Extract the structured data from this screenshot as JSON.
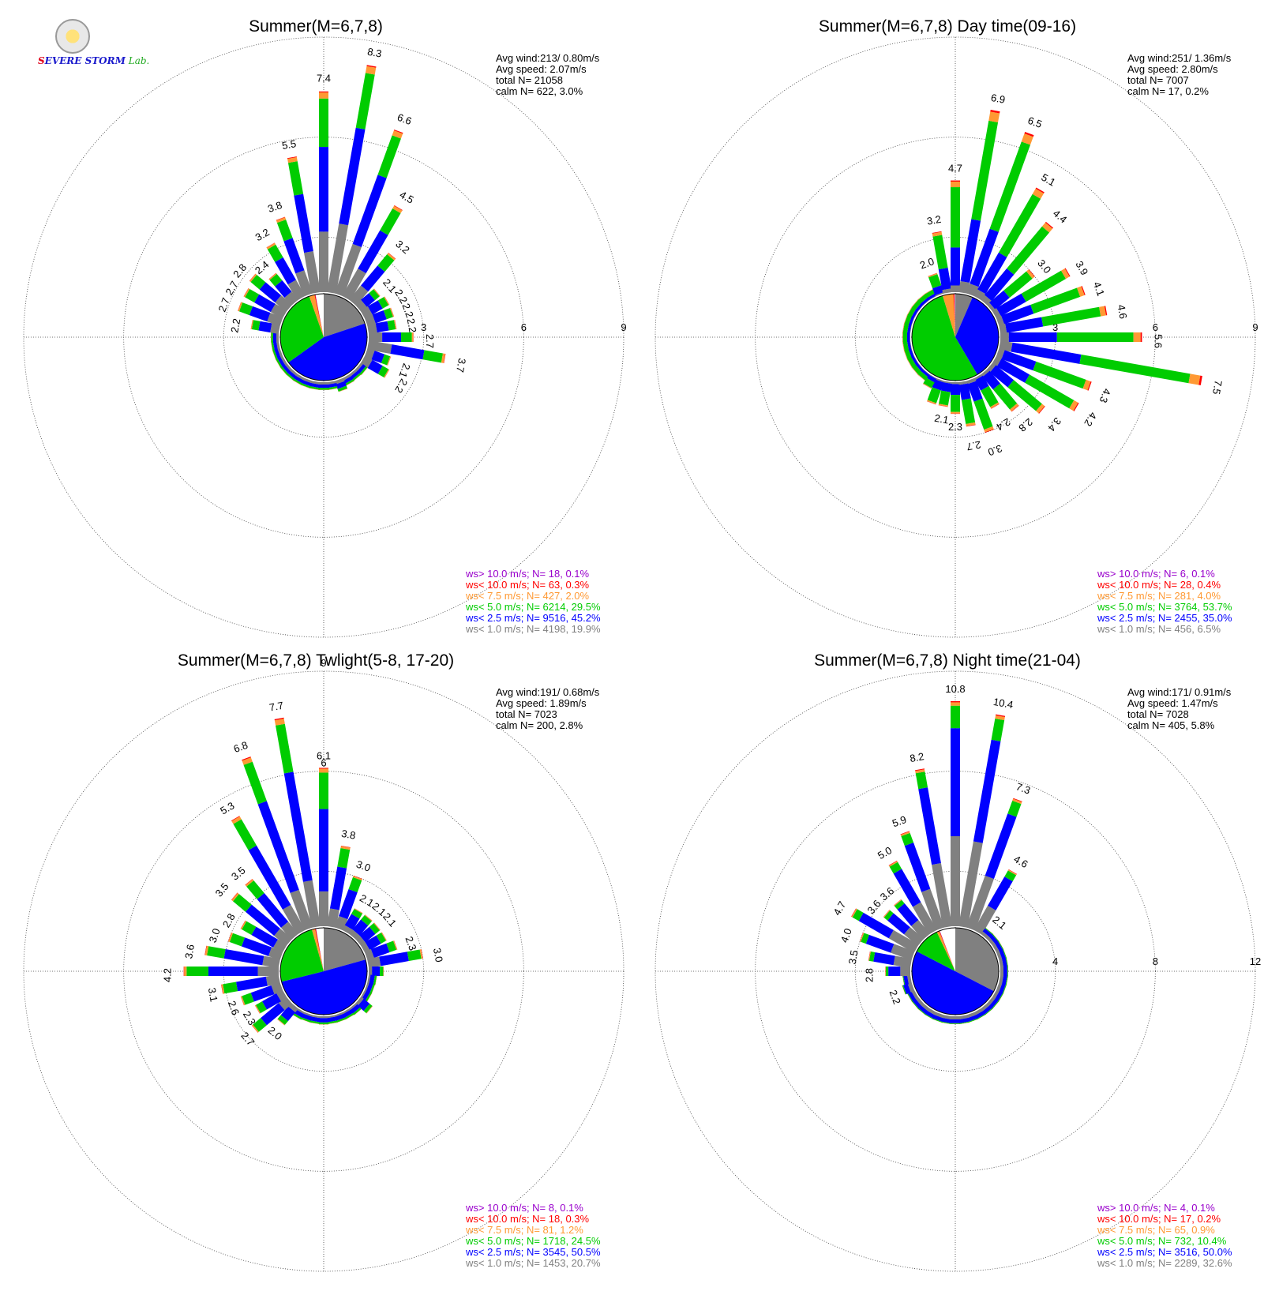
{
  "logo": {
    "part1": "S",
    "part2": "EVERE STORM",
    "part3": "Lab."
  },
  "colors": {
    "gray": "#808080",
    "blue": "#0000ff",
    "green": "#00cc00",
    "orange": "#ff9933",
    "red": "#ff0000",
    "purple": "#9900cc",
    "calm": "#ffffff"
  },
  "chart_data": [
    {
      "type": "wind-rose",
      "title": "Summer(M=6,7,8)",
      "rings": [
        3,
        6,
        9
      ],
      "stats": [
        "Avg wind:213/ 0.80m/s",
        "Avg speed: 2.07m/s",
        "total N=      21058",
        "calm N=    622,   3.0%"
      ],
      "legend": [
        {
          "label": "ws> 10.0 m/s; N=     18,  0.1%",
          "color": "#9900cc"
        },
        {
          "label": "ws< 10.0 m/s; N=     63,  0.3%",
          "color": "#ff0000"
        },
        {
          "label": "ws<  7.5 m/s; N=   427,  2.0%",
          "color": "#ff9933"
        },
        {
          "label": "ws<  5.0 m/s; N=  6214, 29.5%",
          "color": "#00cc00"
        },
        {
          "label": "ws<  2.5 m/s; N=  9516, 45.2%",
          "color": "#0000ff"
        },
        {
          "label": "ws<  1.0 m/s; N=  4198, 19.9%",
          "color": "#808080"
        }
      ],
      "pie": [
        19.9,
        45.2,
        29.5,
        2.0,
        0.3,
        0.1,
        3.0
      ],
      "directions": [
        0,
        10,
        20,
        30,
        40,
        50,
        60,
        70,
        80,
        90,
        100,
        110,
        120,
        130,
        140,
        150,
        160,
        170,
        180,
        190,
        200,
        210,
        220,
        230,
        240,
        250,
        260,
        270,
        280,
        290,
        300,
        310,
        320,
        330,
        340,
        350
      ],
      "totals": [
        1.4,
        1.3,
        1.2,
        1.1,
        1.0,
        1.0,
        1.0,
        1.0,
        1.0,
        1.4,
        2.2,
        2.7,
        2.7,
        2.8,
        2.4,
        3.2,
        3.8,
        5.5,
        7.4,
        8.3,
        6.6,
        4.5,
        3.2,
        2.1,
        2.2,
        2.2,
        2.2,
        2.7,
        3.7,
        2.1,
        2.2,
        1.6,
        1.5,
        1.6,
        1.7,
        1.5
      ],
      "labels": [
        "",
        "",
        "",
        "",
        "",
        "",
        "",
        "",
        "",
        "",
        "2.2",
        "2.7",
        "2.7",
        "2.8",
        "2.4",
        "3.2",
        "3.8",
        "5.5",
        "7.4",
        "8.3",
        "6.6",
        "4.5",
        "3.2",
        "2.1",
        "2.2",
        "2.2",
        "2.2",
        "2.7",
        "3.7",
        "2.1",
        "2.2",
        "",
        "",
        "",
        "",
        ""
      ],
      "fractions": [
        0.3,
        0.42,
        0.24,
        0.03,
        0.005
      ]
    },
    {
      "type": "wind-rose",
      "title": "Summer(M=6,7,8) Day time(09-16)",
      "rings": [
        3,
        6,
        9
      ],
      "stats": [
        "Avg wind:251/ 1.36m/s",
        "Avg speed: 2.80m/s",
        "total N=        7007",
        "calm N=      17,   0.2%"
      ],
      "legend": [
        {
          "label": "ws> 10.0 m/s; N=      6,  0.1%",
          "color": "#9900cc"
        },
        {
          "label": "ws< 10.0 m/s; N=     28,  0.4%",
          "color": "#ff0000"
        },
        {
          "label": "ws<  7.5 m/s; N=   281,  4.0%",
          "color": "#ff9933"
        },
        {
          "label": "ws<  5.0 m/s; N=  3764, 53.7%",
          "color": "#00cc00"
        },
        {
          "label": "ws<  2.5 m/s; N=  2455, 35.0%",
          "color": "#0000ff"
        },
        {
          "label": "ws<  1.0 m/s; N=    456,  6.5%",
          "color": "#808080"
        }
      ],
      "pie": [
        6.5,
        35.0,
        53.7,
        4.0,
        0.4,
        0.1,
        0.2
      ],
      "directions": [
        0,
        10,
        20,
        30,
        40,
        50,
        60,
        70,
        80,
        90,
        100,
        110,
        120,
        130,
        140,
        150,
        160,
        170,
        180,
        190,
        200,
        210,
        220,
        230,
        240,
        250,
        260,
        270,
        280,
        290,
        300,
        310,
        320,
        330,
        340,
        350
      ],
      "totals": [
        2.3,
        2.1,
        2.1,
        1.7,
        1.3,
        1.0,
        0.8,
        0.7,
        0.6,
        0.5,
        0.5,
        0.7,
        0.9,
        1.0,
        1.1,
        1.3,
        2.0,
        3.2,
        4.7,
        6.9,
        6.5,
        5.1,
        4.4,
        3.0,
        3.9,
        4.1,
        4.6,
        5.6,
        7.5,
        4.3,
        4.2,
        3.4,
        2.8,
        2.4,
        3.0,
        2.7
      ],
      "labels": [
        "2.3",
        "2.1",
        "",
        "",
        "",
        "",
        "",
        "",
        "",
        "",
        "",
        "",
        "",
        "",
        "",
        "",
        "2.0",
        "3.2",
        "4.7",
        "6.9",
        "6.5",
        "5.1",
        "4.4",
        "3.0",
        "3.9",
        "4.1",
        "4.6",
        "5.6",
        "7.5",
        "4.3",
        "4.2",
        "3.4",
        "2.8",
        "2.4",
        "3.0",
        "2.7"
      ],
      "fractions": [
        0.06,
        0.34,
        0.54,
        0.05,
        0.01
      ]
    },
    {
      "type": "wind-rose",
      "title": "Summer(M=6,7,8) Twlight(5-8, 17-20)",
      "rings": [
        3,
        6,
        9
      ],
      "stats": [
        "Avg wind:191/ 0.68m/s",
        "Avg speed: 1.89m/s",
        "total N=        7023",
        "calm N=    200,   2.8%"
      ],
      "legend": [
        {
          "label": "ws> 10.0 m/s; N=      8,  0.1%",
          "color": "#9900cc"
        },
        {
          "label": "ws< 10.0 m/s; N=     18,  0.3%",
          "color": "#ff0000"
        },
        {
          "label": "ws<  7.5 m/s; N=     81,  1.2%",
          "color": "#ff9933"
        },
        {
          "label": "ws<  5.0 m/s; N=  1718, 24.5%",
          "color": "#00cc00"
        },
        {
          "label": "ws<  2.5 m/s; N=  3545, 50.5%",
          "color": "#0000ff"
        },
        {
          "label": "ws<  1.0 m/s; N=  1453, 20.7%",
          "color": "#808080"
        }
      ],
      "pie": [
        20.7,
        50.5,
        24.5,
        1.2,
        0.3,
        0.1,
        2.8
      ],
      "directions": [
        0,
        10,
        20,
        30,
        40,
        50,
        60,
        70,
        80,
        90,
        100,
        110,
        120,
        130,
        140,
        150,
        160,
        170,
        180,
        190,
        200,
        210,
        220,
        230,
        240,
        250,
        260,
        270,
        280,
        290,
        300,
        310,
        320,
        330,
        340,
        350
      ],
      "totals": [
        1.6,
        1.4,
        1.5,
        1.6,
        2.0,
        2.7,
        2.3,
        2.6,
        3.1,
        4.2,
        3.6,
        3.0,
        2.8,
        3.5,
        3.5,
        5.3,
        6.8,
        7.7,
        6.1,
        3.8,
        3.0,
        2.1,
        2.1,
        2.1,
        2.1,
        2.3,
        3.0,
        1.8,
        1.6,
        1.5,
        1.5,
        1.8,
        1.6,
        1.5,
        1.4,
        1.3
      ],
      "labels": [
        "",
        "",
        "",
        "",
        "2.0",
        "2.7",
        "2.3",
        "2.6",
        "3.1",
        "4.2",
        "3.6",
        "3.0",
        "2.8",
        "3.5",
        "3.5",
        "5.3",
        "6.8",
        "7.7",
        "6.1",
        "3.8",
        "3.0",
        "2.1",
        "2.1",
        "2.1",
        "",
        "2.3",
        "3.0",
        "",
        "",
        "",
        "",
        "",
        "",
        "",
        "",
        ""
      ],
      "fractions": [
        0.22,
        0.52,
        0.23,
        0.025,
        0.005
      ]
    },
    {
      "type": "wind-rose",
      "title": "Summer(M=6,7,8) Night time(21-04)",
      "rings": [
        4,
        8,
        12
      ],
      "stats": [
        "Avg wind:171/ 0.91m/s",
        "Avg speed: 1.47m/s",
        "total N=        7028",
        "calm N=    405,   5.8%"
      ],
      "legend": [
        {
          "label": "ws> 10.0 m/s; N=      4,  0.1%",
          "color": "#9900cc"
        },
        {
          "label": "ws< 10.0 m/s; N=     17,  0.2%",
          "color": "#ff0000"
        },
        {
          "label": "ws<  7.5 m/s; N=     65,  0.9%",
          "color": "#ff9933"
        },
        {
          "label": "ws<  5.0 m/s; N=    732, 10.4%",
          "color": "#00cc00"
        },
        {
          "label": "ws<  2.5 m/s; N=  3516, 50.0%",
          "color": "#0000ff"
        },
        {
          "label": "ws<  1.0 m/s; N=  2289, 32.6%",
          "color": "#808080"
        }
      ],
      "pie": [
        32.6,
        50.0,
        10.4,
        0.9,
        0.2,
        0.1,
        5.8
      ],
      "directions": [
        0,
        10,
        20,
        30,
        40,
        50,
        60,
        70,
        80,
        90,
        100,
        110,
        120,
        130,
        140,
        150,
        160,
        170,
        180,
        190,
        200,
        210,
        220,
        230,
        240,
        250,
        260,
        270,
        280,
        290,
        300,
        310,
        320,
        330,
        340,
        350
      ],
      "totals": [
        1.1,
        1.2,
        1.3,
        1.4,
        1.6,
        1.8,
        2.0,
        2.2,
        2.0,
        2.8,
        3.5,
        4.0,
        4.7,
        3.6,
        3.6,
        5.0,
        5.9,
        8.2,
        10.8,
        10.4,
        7.3,
        4.6,
        2.1,
        1.8,
        1.6,
        1.4,
        1.2,
        1.1,
        1.0,
        1.0,
        1.1,
        1.2,
        1.3,
        1.2,
        1.1,
        1.1
      ],
      "labels": [
        "",
        "",
        "",
        "",
        "",
        "",
        "",
        "2.2",
        "",
        "2.8",
        "3.5",
        "4.0",
        "4.7",
        "3.6",
        "3.6",
        "5.0",
        "5.9",
        "8.2",
        "10.8",
        "10.4",
        "7.3",
        "4.6",
        "2.1",
        "",
        "",
        "",
        "",
        "",
        "",
        "",
        "",
        "",
        "",
        "",
        "",
        ""
      ],
      "fractions": [
        0.4,
        0.48,
        0.1,
        0.015,
        0.005
      ]
    }
  ]
}
